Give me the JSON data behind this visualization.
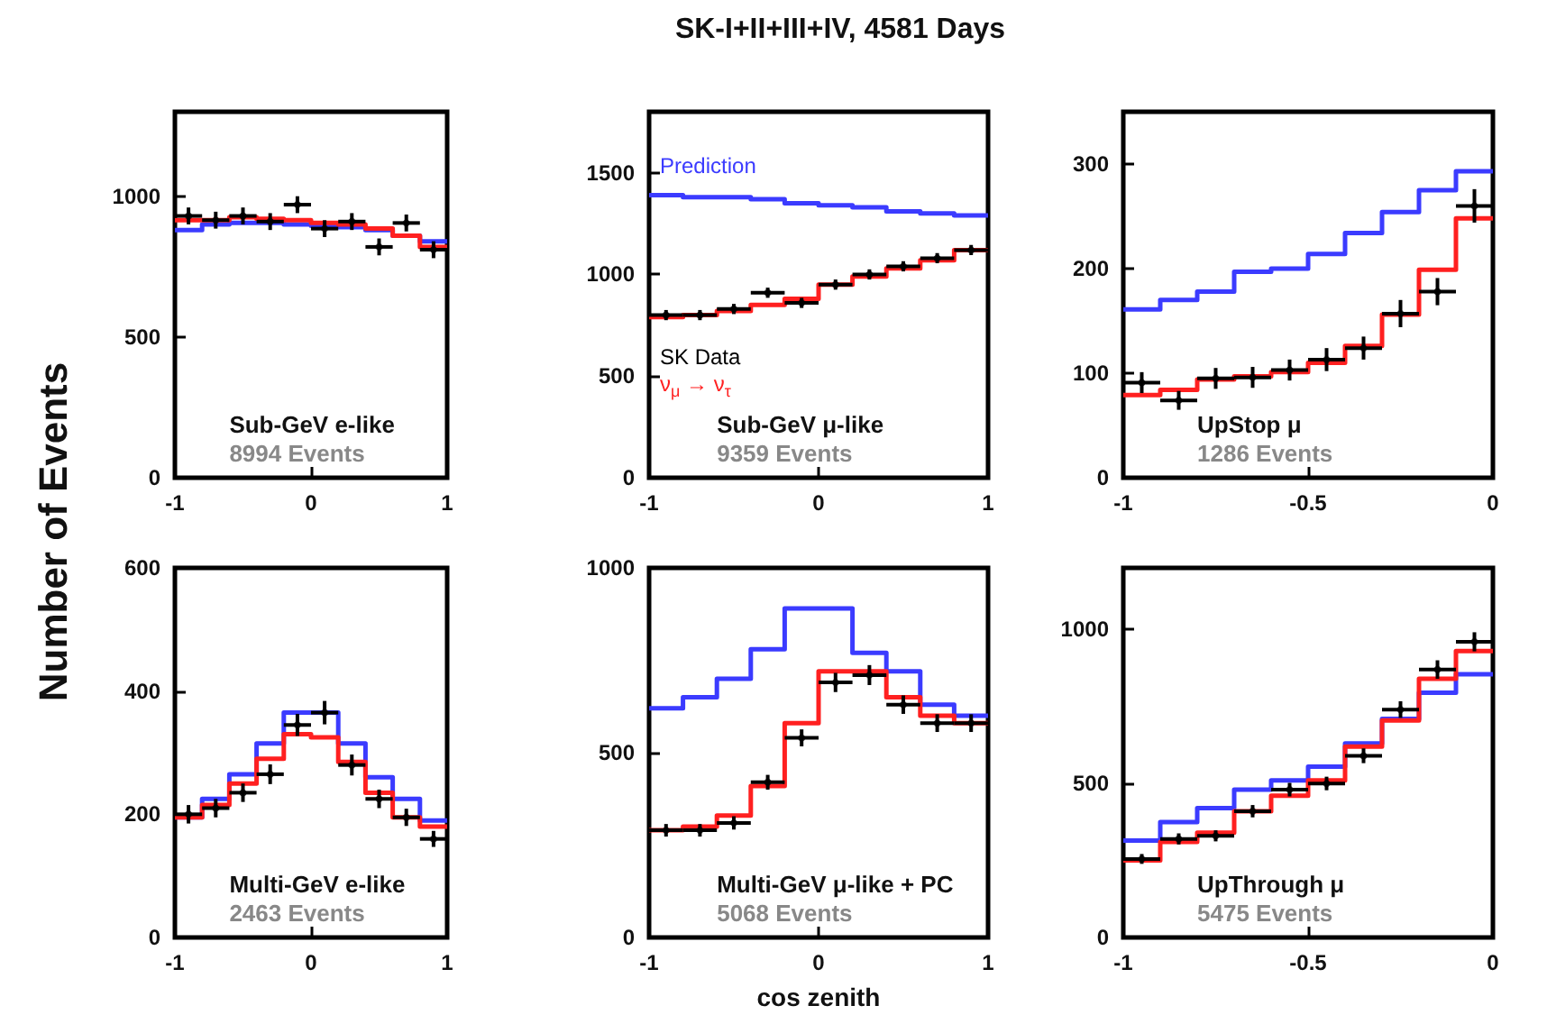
{
  "chart_data": [
    {
      "type": "histogram",
      "bins": [
        -1,
        -0.8,
        -0.6,
        -0.4,
        -0.2,
        0,
        0.2,
        0.4,
        0.6,
        0.8,
        1
      ],
      "xlim": [
        -1,
        1
      ],
      "xticks": [
        -1,
        0,
        1
      ],
      "ylim": [
        0,
        1300
      ],
      "yticks": [
        0,
        500,
        1000
      ],
      "annotations": [
        "Sub-GeV e-like",
        "8994 Events"
      ],
      "series": [
        {
          "type": "histogram",
          "color": "#3b3bff",
          "values": [
            880,
            900,
            905,
            905,
            900,
            895,
            890,
            880,
            860,
            840
          ]
        },
        {
          "type": "histogram",
          "color": "#ff2020",
          "values": [
            915,
            915,
            925,
            920,
            915,
            905,
            900,
            885,
            860,
            820
          ]
        },
        {
          "type": "scatter",
          "color": "#000000",
          "x": [
            -0.9,
            -0.7,
            -0.5,
            -0.3,
            -0.1,
            0.1,
            0.3,
            0.5,
            0.7,
            0.9
          ],
          "values": [
            930,
            915,
            930,
            910,
            970,
            885,
            910,
            820,
            905,
            810
          ],
          "errors": [
            30,
            30,
            30,
            30,
            30,
            30,
            30,
            30,
            30,
            30
          ],
          "xerrors": [
            0.1,
            0.1,
            0.1,
            0.1,
            0.1,
            0.1,
            0.1,
            0.1,
            0.1,
            0.1
          ]
        }
      ]
    },
    {
      "type": "histogram",
      "title": "SK-I+II+III+IV, 4581 Days",
      "bins": [
        -1,
        -0.8,
        -0.6,
        -0.4,
        -0.2,
        0,
        0.2,
        0.4,
        0.6,
        0.8,
        1
      ],
      "xlim": [
        -1,
        1
      ],
      "xticks": [
        -1,
        0,
        1
      ],
      "ylim": [
        0,
        1800
      ],
      "yticks": [
        0,
        500,
        1000,
        1500
      ],
      "annotations": [
        "Sub-GeV μ-like",
        "9359 Events"
      ],
      "series": [
        {
          "type": "histogram",
          "name": "Prediction",
          "color": "#3b3bff",
          "values": [
            1390,
            1380,
            1380,
            1370,
            1350,
            1340,
            1330,
            1310,
            1300,
            1290
          ]
        },
        {
          "type": "histogram",
          "name": "ν$_{μ}$ → ν$_{τ}$",
          "color": "#ff2020",
          "values": [
            790,
            800,
            820,
            850,
            880,
            950,
            990,
            1030,
            1070,
            1120
          ]
        },
        {
          "type": "scatter",
          "name": "SK Data",
          "color": "#000000",
          "x": [
            -0.9,
            -0.7,
            -0.5,
            -0.3,
            -0.1,
            0.1,
            0.3,
            0.5,
            0.7,
            0.9
          ],
          "values": [
            800,
            800,
            830,
            910,
            860,
            950,
            1000,
            1040,
            1080,
            1120
          ],
          "errors": [
            25,
            25,
            25,
            25,
            25,
            25,
            25,
            25,
            25,
            25
          ],
          "xerrors": [
            0.1,
            0.1,
            0.1,
            0.1,
            0.1,
            0.1,
            0.1,
            0.1,
            0.1,
            0.1
          ]
        }
      ]
    },
    {
      "type": "histogram",
      "bins": [
        -1,
        -0.9,
        -0.8,
        -0.7,
        -0.6,
        -0.5,
        -0.4,
        -0.3,
        -0.2,
        -0.1,
        0
      ],
      "xlim": [
        -1,
        0
      ],
      "xticks": [
        -1,
        -0.5,
        0
      ],
      "ylim": [
        0,
        350
      ],
      "yticks": [
        0,
        100,
        200,
        300
      ],
      "annotations": [
        "UpStop μ",
        "1286 Events"
      ],
      "series": [
        {
          "type": "histogram",
          "color": "#3b3bff",
          "values": [
            161,
            170,
            178,
            197,
            200,
            214,
            234,
            254,
            275,
            293
          ]
        },
        {
          "type": "histogram",
          "color": "#ff2020",
          "values": [
            79,
            84,
            94,
            97,
            101,
            110,
            126,
            156,
            199,
            248
          ]
        },
        {
          "type": "scatter",
          "color": "#000000",
          "x": [
            -0.95,
            -0.85,
            -0.75,
            -0.65,
            -0.55,
            -0.45,
            -0.35,
            -0.25,
            -0.15,
            -0.05
          ],
          "values": [
            91,
            74,
            95,
            96,
            103,
            113,
            124,
            157,
            178,
            260
          ],
          "errors": [
            10,
            9,
            10,
            10,
            10,
            11,
            11,
            13,
            13,
            16
          ],
          "xerrors": [
            0.05,
            0.05,
            0.05,
            0.05,
            0.05,
            0.05,
            0.05,
            0.05,
            0.05,
            0.05
          ]
        }
      ]
    },
    {
      "type": "histogram",
      "ylabel": "Number of Events",
      "bins": [
        -1,
        -0.8,
        -0.6,
        -0.4,
        -0.2,
        0,
        0.2,
        0.4,
        0.6,
        0.8,
        1
      ],
      "xlim": [
        -1,
        1
      ],
      "xticks": [
        -1,
        0,
        1
      ],
      "ylim": [
        0,
        600
      ],
      "yticks": [
        0,
        200,
        400,
        600
      ],
      "annotations": [
        "Multi-GeV e-like",
        "2463 Events"
      ],
      "series": [
        {
          "type": "histogram",
          "color": "#3b3bff",
          "values": [
            195,
            225,
            265,
            315,
            365,
            365,
            315,
            260,
            225,
            190
          ]
        },
        {
          "type": "histogram",
          "color": "#ff2020",
          "values": [
            195,
            215,
            250,
            290,
            330,
            325,
            285,
            235,
            195,
            180
          ]
        },
        {
          "type": "scatter",
          "color": "#000000",
          "x": [
            -0.9,
            -0.7,
            -0.5,
            -0.3,
            -0.1,
            0.1,
            0.3,
            0.5,
            0.7,
            0.9
          ],
          "values": [
            200,
            210,
            235,
            265,
            345,
            365,
            280,
            225,
            195,
            160
          ],
          "errors": [
            15,
            15,
            15,
            16,
            18,
            19,
            17,
            15,
            14,
            13
          ],
          "xerrors": [
            0.1,
            0.1,
            0.1,
            0.1,
            0.1,
            0.1,
            0.1,
            0.1,
            0.1,
            0.1
          ]
        }
      ]
    },
    {
      "type": "histogram",
      "xlabel": "cos zenith",
      "bins": [
        -1,
        -0.8,
        -0.6,
        -0.4,
        -0.2,
        0,
        0.2,
        0.4,
        0.6,
        0.8,
        1
      ],
      "xlim": [
        -1,
        1
      ],
      "xticks": [
        -1,
        0,
        1
      ],
      "ylim": [
        0,
        1000
      ],
      "yticks": [
        0,
        500,
        1000
      ],
      "annotations": [
        "Multi-GeV μ-like + PC",
        "5068 Events"
      ],
      "series": [
        {
          "type": "histogram",
          "color": "#3b3bff",
          "values": [
            620,
            650,
            700,
            780,
            890,
            890,
            770,
            720,
            630,
            600
          ]
        },
        {
          "type": "histogram",
          "color": "#ff2020",
          "values": [
            290,
            300,
            330,
            410,
            580,
            720,
            720,
            650,
            600,
            580
          ]
        },
        {
          "type": "scatter",
          "color": "#000000",
          "x": [
            -0.9,
            -0.7,
            -0.5,
            -0.3,
            -0.1,
            0.1,
            0.3,
            0.5,
            0.7,
            0.9
          ],
          "values": [
            290,
            290,
            310,
            420,
            540,
            690,
            710,
            630,
            580,
            580
          ],
          "errors": [
            17,
            17,
            18,
            20,
            23,
            26,
            27,
            25,
            24,
            24
          ],
          "xerrors": [
            0.1,
            0.1,
            0.1,
            0.1,
            0.1,
            0.1,
            0.1,
            0.1,
            0.1,
            0.1
          ]
        }
      ]
    },
    {
      "type": "histogram",
      "bins": [
        -1,
        -0.9,
        -0.8,
        -0.7,
        -0.6,
        -0.5,
        -0.4,
        -0.3,
        -0.2,
        -0.1,
        0
      ],
      "xlim": [
        -1,
        0
      ],
      "xticks": [
        -1,
        -0.5,
        0
      ],
      "ylim": [
        0,
        1200
      ],
      "yticks": [
        0,
        500,
        1000
      ],
      "annotations": [
        "UpThrough μ",
        "5475 Events"
      ],
      "series": [
        {
          "type": "histogram",
          "color": "#3b3bff",
          "values": [
            315,
            375,
            420,
            480,
            510,
            555,
            630,
            710,
            795,
            855
          ]
        },
        {
          "type": "histogram",
          "color": "#ff2020",
          "values": [
            250,
            310,
            340,
            410,
            460,
            510,
            620,
            705,
            840,
            930
          ]
        },
        {
          "type": "scatter",
          "color": "#000000",
          "x": [
            -0.95,
            -0.85,
            -0.75,
            -0.65,
            -0.55,
            -0.45,
            -0.35,
            -0.25,
            -0.15,
            -0.05
          ],
          "values": [
            255,
            320,
            330,
            410,
            480,
            500,
            590,
            740,
            870,
            960
          ],
          "errors": [
            16,
            18,
            18,
            20,
            22,
            22,
            24,
            27,
            30,
            31
          ],
          "xerrors": [
            0.05,
            0.05,
            0.05,
            0.05,
            0.05,
            0.05,
            0.05,
            0.05,
            0.05,
            0.05
          ]
        }
      ]
    }
  ]
}
